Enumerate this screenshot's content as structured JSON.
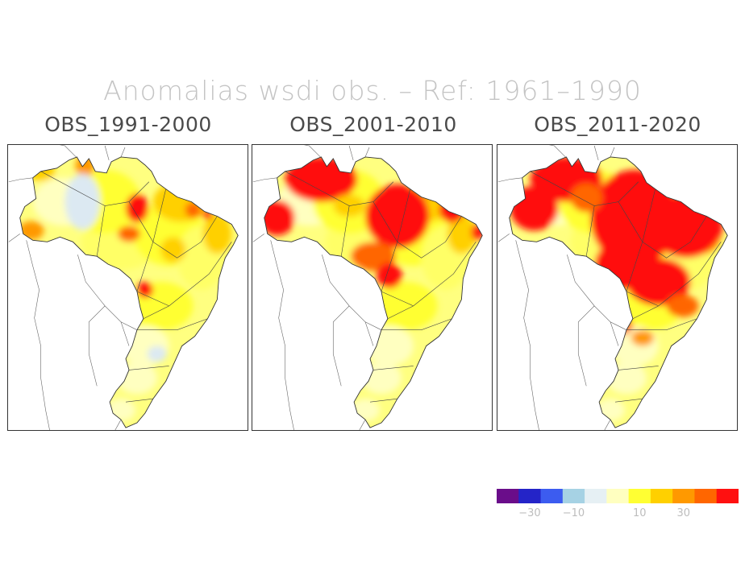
{
  "title": "Anomalias wsdi obs. – Ref: 1961–1990",
  "panels": [
    {
      "title": "OBS_1991-2000",
      "anomaly_level": 1
    },
    {
      "title": "OBS_2001-2010",
      "anomaly_level": 2
    },
    {
      "title": "OBS_2011-2020",
      "anomaly_level": 3
    }
  ],
  "colorbar": {
    "colors": [
      "#6a0d8a",
      "#2424c8",
      "#3c5cf0",
      "#a6d2e4",
      "#e6f0f4",
      "#ffffc0",
      "#ffff33",
      "#ffd000",
      "#ff9900",
      "#ff6600",
      "#ff1010"
    ],
    "tick_labels": [
      {
        "text": "−30",
        "index": 1.5
      },
      {
        "text": "−10",
        "index": 3.5
      },
      {
        "text": "10",
        "index": 6.5
      },
      {
        "text": "30",
        "index": 8.5
      }
    ]
  }
}
